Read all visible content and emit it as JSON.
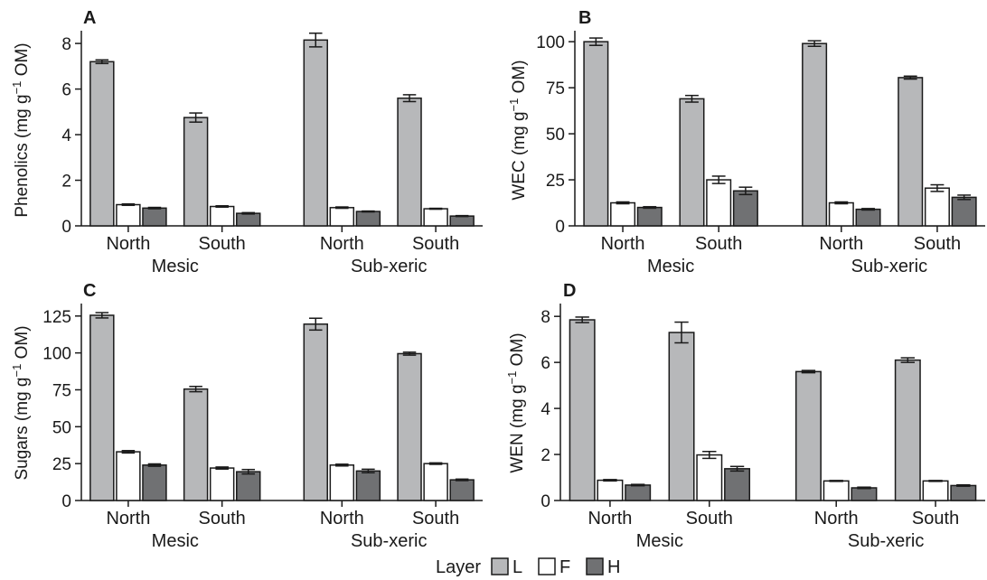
{
  "colors": {
    "L": "#b7b8ba",
    "F": "#ffffff",
    "H": "#707173",
    "stroke": "#1a1a1a"
  },
  "legend": {
    "title": "Layer",
    "items": [
      {
        "key": "L",
        "label": "L"
      },
      {
        "key": "F",
        "label": "F"
      },
      {
        "key": "H",
        "label": "H"
      }
    ]
  },
  "chart_data": [
    {
      "panel": "A",
      "type": "bar",
      "ylabel_main": "Phenolics (mg g",
      "ylabel_sup": "−1",
      "ylabel_end": " OM)",
      "ylim": [
        0,
        8.4
      ],
      "yticks": [
        0,
        2,
        4,
        6,
        8
      ],
      "categories": [
        "North",
        "South",
        "North",
        "South"
      ],
      "groups": [
        "Mesic",
        "Sub-xeric"
      ],
      "series": [
        {
          "name": "L",
          "values": [
            7.2,
            4.75,
            8.15,
            5.6
          ],
          "errors": [
            0.08,
            0.2,
            0.3,
            0.15
          ]
        },
        {
          "name": "F",
          "values": [
            0.93,
            0.85,
            0.8,
            0.75
          ],
          "errors": [
            0.03,
            0.03,
            0.03,
            0.02
          ]
        },
        {
          "name": "H",
          "values": [
            0.78,
            0.55,
            0.63,
            0.43
          ],
          "errors": [
            0.03,
            0.03,
            0.02,
            0.02
          ]
        }
      ]
    },
    {
      "panel": "B",
      "type": "bar",
      "ylabel_main": "WEC (mg g",
      "ylabel_sup": "−1",
      "ylabel_end": " OM)",
      "ylim": [
        0,
        104
      ],
      "yticks": [
        0,
        25,
        50,
        75,
        100
      ],
      "categories": [
        "North",
        "South",
        "North",
        "South"
      ],
      "groups": [
        "Mesic",
        "Sub-xeric"
      ],
      "series": [
        {
          "name": "L",
          "values": [
            100,
            69,
            99,
            80.5
          ],
          "errors": [
            2.0,
            1.8,
            1.5,
            0.8
          ]
        },
        {
          "name": "F",
          "values": [
            12.5,
            25,
            12.5,
            20.5
          ],
          "errors": [
            0.5,
            2.0,
            0.5,
            1.8
          ]
        },
        {
          "name": "H",
          "values": [
            10,
            19,
            9,
            15.5
          ],
          "errors": [
            0.4,
            2.0,
            0.4,
            1.2
          ]
        }
      ]
    },
    {
      "panel": "C",
      "type": "bar",
      "ylabel_main": "Sugars (mg g",
      "ylabel_sup": "−1",
      "ylabel_end": " OM)",
      "ylim": [
        0,
        131
      ],
      "yticks": [
        0,
        25,
        50,
        75,
        100,
        125
      ],
      "categories": [
        "North",
        "South",
        "North",
        "South"
      ],
      "groups": [
        "Mesic",
        "Sub-xeric"
      ],
      "series": [
        {
          "name": "L",
          "values": [
            125.5,
            75.5,
            119.5,
            99.5
          ],
          "errors": [
            1.8,
            1.8,
            4.0,
            1.0
          ]
        },
        {
          "name": "F",
          "values": [
            33,
            22,
            24,
            25
          ],
          "errors": [
            0.8,
            0.7,
            0.6,
            0.5
          ]
        },
        {
          "name": "H",
          "values": [
            24,
            19.5,
            20,
            14
          ],
          "errors": [
            0.8,
            1.5,
            1.2,
            0.5
          ]
        }
      ]
    },
    {
      "panel": "D",
      "type": "bar",
      "ylabel_main": "WEN (mg g",
      "ylabel_sup": "−1",
      "ylabel_end": " OM)",
      "ylim": [
        0,
        8.4
      ],
      "yticks": [
        0,
        2,
        4,
        6,
        8
      ],
      "categories": [
        "North",
        "South",
        "North",
        "South"
      ],
      "groups": [
        "Mesic",
        "Sub-xeric"
      ],
      "series": [
        {
          "name": "L",
          "values": [
            7.85,
            7.3,
            5.6,
            6.1
          ],
          "errors": [
            0.12,
            0.45,
            0.05,
            0.1
          ]
        },
        {
          "name": "F",
          "values": [
            0.88,
            1.98,
            0.85,
            0.85
          ],
          "errors": [
            0.03,
            0.15,
            0.02,
            0.02
          ]
        },
        {
          "name": "H",
          "values": [
            0.67,
            1.38,
            0.55,
            0.65
          ],
          "errors": [
            0.03,
            0.1,
            0.03,
            0.03
          ]
        }
      ]
    }
  ]
}
